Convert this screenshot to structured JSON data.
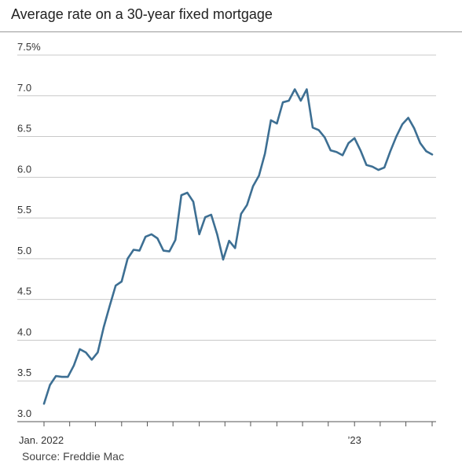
{
  "title": "Average rate on a 30-year fixed mortgage",
  "source": "Source: Freddie Mac",
  "colors": {
    "line": "#3d6f93",
    "grid": "#c9c9c9",
    "axis": "#555555"
  },
  "chart_data": {
    "type": "line",
    "title": "Average rate on a 30-year fixed mortgage",
    "xlabel": "",
    "ylabel": "",
    "ylim": [
      3.0,
      7.5
    ],
    "ytick_values": [
      3.0,
      3.5,
      4.0,
      4.5,
      5.0,
      5.5,
      6.0,
      6.5,
      7.0,
      7.5
    ],
    "ytick_labels": [
      "3.0",
      "3.5",
      "4.0",
      "4.5",
      "5.0",
      "5.5",
      "6.0",
      "6.5",
      "7.0",
      "7.5%"
    ],
    "x_unit": "week",
    "xlim": [
      0,
      65
    ],
    "xtick_positions": [
      0,
      4.3,
      8.6,
      13.0,
      17.3,
      21.6,
      26.0,
      30.3,
      34.6,
      39.0,
      43.3,
      47.6,
      52.0,
      56.3,
      60.6,
      65.0
    ],
    "xtick_labels": [
      {
        "pos": 0,
        "text": "Jan. 2022"
      },
      {
        "pos": 52.0,
        "text": "’23"
      }
    ],
    "grid": true,
    "legend": "none",
    "series": [
      {
        "values": [
          3.22,
          3.45,
          3.56,
          3.55,
          3.55,
          3.69,
          3.89,
          3.85,
          3.76,
          3.85,
          4.16,
          4.42,
          4.67,
          4.72,
          5.0,
          5.11,
          5.1,
          5.27,
          5.3,
          5.25,
          5.1,
          5.09,
          5.23,
          5.78,
          5.81,
          5.7,
          5.3,
          5.51,
          5.54,
          5.3,
          4.99,
          5.22,
          5.13,
          5.55,
          5.66,
          5.89,
          6.02,
          6.29,
          6.7,
          6.66,
          6.92,
          6.94,
          7.08,
          6.94,
          7.08,
          6.61,
          6.58,
          6.49,
          6.33,
          6.31,
          6.27,
          6.42,
          6.48,
          6.33,
          6.15,
          6.13,
          6.09,
          6.12,
          6.32,
          6.5,
          6.65,
          6.73,
          6.6,
          6.42,
          6.32,
          6.28
        ]
      }
    ]
  }
}
